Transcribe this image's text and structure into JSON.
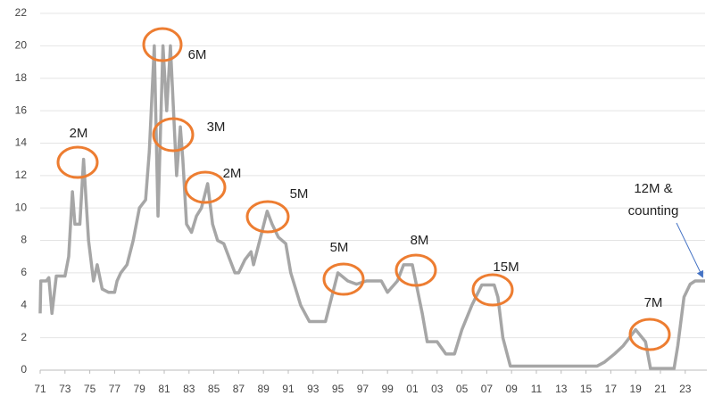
{
  "chart_data": {
    "type": "line",
    "x": [
      1971.0,
      1971.05,
      1971.5,
      1971.7,
      1971.95,
      1972.3,
      1973.0,
      1973.3,
      1973.6,
      1973.8,
      1974.2,
      1974.5,
      1974.9,
      1975.3,
      1975.6,
      1976.0,
      1976.5,
      1977.0,
      1977.2,
      1977.5,
      1978.0,
      1978.5,
      1979.0,
      1979.5,
      1979.8,
      1980.2,
      1980.5,
      1980.9,
      1981.2,
      1981.5,
      1982.0,
      1982.3,
      1982.5,
      1982.8,
      1983.2,
      1983.6,
      1984.0,
      1984.5,
      1984.9,
      1985.3,
      1985.8,
      1986.3,
      1986.7,
      1987.0,
      1987.5,
      1988.0,
      1988.2,
      1988.7,
      1989.3,
      1989.7,
      1990.2,
      1990.8,
      1991.2,
      1992.0,
      1992.7,
      1994.0,
      1994.5,
      1995.0,
      1995.8,
      1996.5,
      1997.3,
      1998.5,
      1999.0,
      1999.8,
      2000.3,
      2001.0,
      2001.8,
      2002.2,
      2003.0,
      2003.7,
      2004.4,
      2005.0,
      2005.8,
      2006.6,
      2007.6,
      2007.9,
      2008.3,
      2008.9,
      2015.9,
      2016.5,
      2017.3,
      2018.0,
      2019.0,
      2019.8,
      2020.2,
      2022.1,
      2022.4,
      2022.9,
      2023.4,
      2023.8,
      2024.6
    ],
    "series": [
      {
        "color": "#a6a6a6",
        "values": [
          3.5,
          5.5,
          5.5,
          5.7,
          3.5,
          5.8,
          5.8,
          7,
          11,
          9,
          9,
          13,
          8,
          5.5,
          6.5,
          5,
          4.8,
          4.8,
          5.5,
          6,
          6.5,
          8,
          10,
          10.5,
          13.5,
          20,
          9.5,
          20,
          16,
          20,
          12,
          15,
          13,
          9,
          8.5,
          9.5,
          10,
          11.5,
          9,
          8,
          7.8,
          6.8,
          6,
          6,
          6.8,
          7.3,
          6.5,
          8,
          9.8,
          9,
          8.2,
          7.8,
          6,
          4,
          3,
          3,
          4.5,
          6,
          5.5,
          5.3,
          5.5,
          5.5,
          4.8,
          5.5,
          6.5,
          6.5,
          3.5,
          1.75,
          1.75,
          1,
          1,
          2.5,
          4,
          5.25,
          5.25,
          4.5,
          2,
          0.25,
          0.25,
          0.5,
          1,
          1.5,
          2.5,
          1.75,
          0.1,
          0.1,
          1.5,
          4.5,
          5.3,
          5.5,
          5.5
        ]
      }
    ],
    "xlim": [
      1971.0,
      2024.6
    ],
    "xticks": [
      {
        "value": 1971,
        "label": "71"
      },
      {
        "value": 1973,
        "label": "73"
      },
      {
        "value": 1975,
        "label": "75"
      },
      {
        "value": 1977,
        "label": "77"
      },
      {
        "value": 1979,
        "label": "79"
      },
      {
        "value": 1981,
        "label": "81"
      },
      {
        "value": 1983,
        "label": "83"
      },
      {
        "value": 1985,
        "label": "85"
      },
      {
        "value": 1987,
        "label": "87"
      },
      {
        "value": 1989,
        "label": "89"
      },
      {
        "value": 1991,
        "label": "91"
      },
      {
        "value": 1993,
        "label": "93"
      },
      {
        "value": 1995,
        "label": "95"
      },
      {
        "value": 1997,
        "label": "97"
      },
      {
        "value": 1999,
        "label": "99"
      },
      {
        "value": 2001,
        "label": "01"
      },
      {
        "value": 2003,
        "label": "03"
      },
      {
        "value": 2005,
        "label": "05"
      },
      {
        "value": 2007,
        "label": "07"
      },
      {
        "value": 2009,
        "label": "09"
      },
      {
        "value": 2011,
        "label": "11"
      },
      {
        "value": 2013,
        "label": "13"
      },
      {
        "value": 2015,
        "label": "15"
      },
      {
        "value": 2017,
        "label": "17"
      },
      {
        "value": 2019,
        "label": "19"
      },
      {
        "value": 2021,
        "label": "21"
      },
      {
        "value": 2023,
        "label": "23"
      }
    ],
    "ylim": [
      0,
      22
    ],
    "yticks": [
      0,
      2,
      4,
      6,
      8,
      10,
      12,
      14,
      16,
      18,
      20,
      22
    ],
    "grid": true,
    "annotations": [
      "2M",
      "6M",
      "3M",
      "2M",
      "5M",
      "5M",
      "8M",
      "15M",
      "7M",
      "12M &",
      "counting"
    ]
  }
}
